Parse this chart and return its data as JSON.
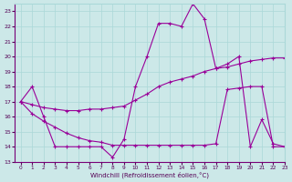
{
  "xlabel": "Windchill (Refroidissement éolien,°C)",
  "xlim": [
    -0.5,
    23
  ],
  "ylim": [
    13,
    23.5
  ],
  "yticks": [
    13,
    14,
    15,
    16,
    17,
    18,
    19,
    20,
    21,
    22,
    23
  ],
  "xticks": [
    0,
    1,
    2,
    3,
    4,
    5,
    6,
    7,
    8,
    9,
    10,
    11,
    12,
    13,
    14,
    15,
    16,
    17,
    18,
    19,
    20,
    21,
    22,
    23
  ],
  "bg_color": "#cce8e8",
  "line_color": "#990099",
  "line1_x": [
    0,
    1,
    2,
    3,
    4,
    5,
    6,
    7,
    8,
    9,
    10,
    11,
    12,
    13,
    14,
    15,
    16,
    17,
    18,
    19,
    20,
    21,
    22,
    23
  ],
  "line1_y": [
    17,
    18,
    16,
    14,
    14,
    14,
    14,
    14,
    13.3,
    14.5,
    18,
    20,
    22.2,
    22.2,
    22.0,
    23.5,
    22.5,
    19.2,
    19.5,
    20.0,
    14.0,
    15.8,
    14.2,
    14.0
  ],
  "line2_x": [
    0,
    1,
    2,
    3,
    4,
    5,
    6,
    7,
    8,
    9,
    10,
    11,
    12,
    13,
    14,
    15,
    16,
    17,
    18,
    19,
    20,
    21,
    22,
    23
  ],
  "line2_y": [
    17.0,
    16.8,
    16.6,
    16.5,
    16.4,
    16.4,
    16.5,
    16.5,
    16.6,
    16.7,
    17.1,
    17.5,
    18.0,
    18.3,
    18.5,
    18.7,
    19.0,
    19.2,
    19.3,
    19.5,
    19.7,
    19.8,
    19.9,
    19.9
  ],
  "line3_x": [
    0,
    1,
    2,
    3,
    4,
    5,
    6,
    7,
    8,
    9,
    10,
    11,
    12,
    13,
    14,
    15,
    16,
    17,
    18,
    19,
    20,
    21,
    22,
    23
  ],
  "line3_y": [
    17.0,
    16.2,
    15.7,
    15.3,
    14.9,
    14.6,
    14.4,
    14.3,
    14.1,
    14.1,
    14.1,
    14.1,
    14.1,
    14.1,
    14.1,
    14.1,
    14.1,
    14.2,
    17.8,
    17.9,
    18.0,
    18.0,
    14.0,
    14.0
  ]
}
